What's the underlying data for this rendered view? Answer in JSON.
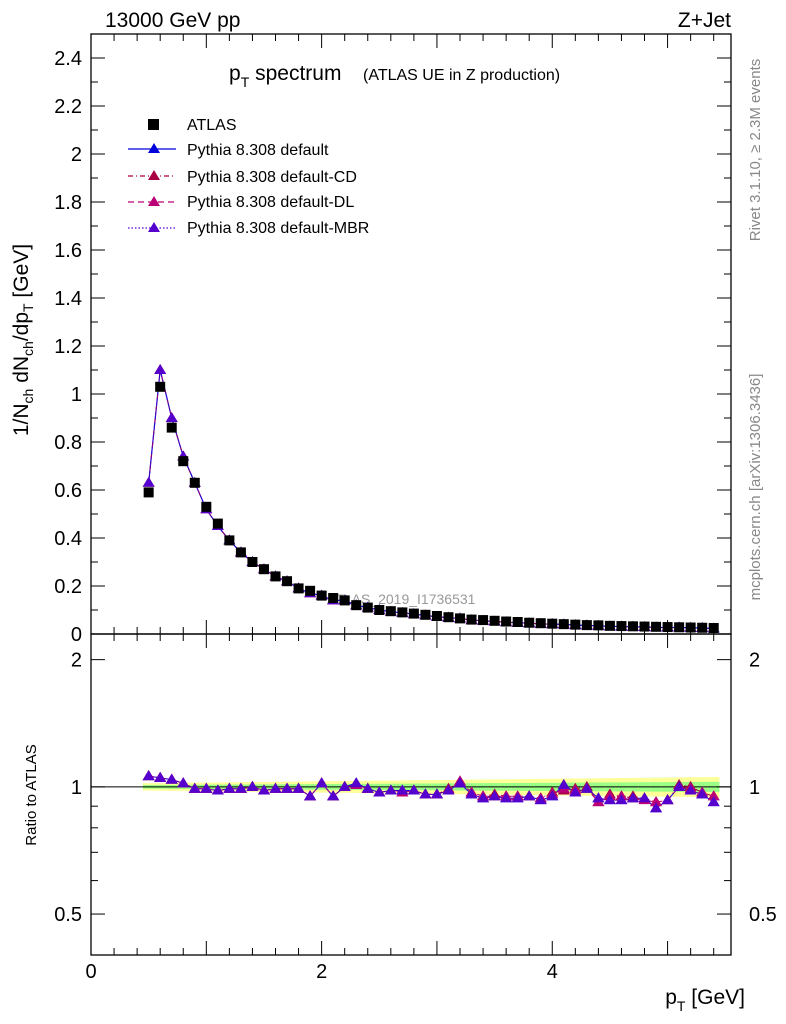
{
  "header": {
    "left": "13000 GeV pp",
    "right": "Z+Jet"
  },
  "side": {
    "rivet": "Rivet 3.1.10, ≥ 2.3M events",
    "mcplots": "mcplots.cern.ch [arXiv:1306.3436]"
  },
  "title": {
    "main": "p",
    "main_sub": "T",
    "main_rest": " spectrum",
    "note": "(ATLAS UE in Z production)"
  },
  "watermark": "ATLAS_2019_I1736531",
  "colors": {
    "atlas": "#000000",
    "default": "#0000dd",
    "cd": "#aa0044",
    "dl": "#bb0077",
    "mbr": "#5500cc",
    "band_yellow": "#ffff80",
    "band_green": "#80ff80"
  },
  "chart_data": [
    {
      "type": "scatter",
      "ylabel": "1/N_ch dN_ch/dp_T [GeV]",
      "ylim": [
        0,
        2.5
      ],
      "xlim": [
        0,
        5.55
      ],
      "yticks": [
        "0",
        "0.2",
        "0.4",
        "0.6",
        "0.8",
        "1",
        "1.2",
        "1.4",
        "1.6",
        "1.8",
        "2",
        "2.2",
        "2.4"
      ],
      "legend": [
        "ATLAS",
        "Pythia 8.308 default",
        "Pythia 8.308 default-CD",
        "Pythia 8.308 default-DL",
        "Pythia 8.308 default-MBR"
      ],
      "legend_placement": "top-left",
      "x": [
        0.5,
        0.6,
        0.7,
        0.8,
        0.9,
        1.0,
        1.1,
        1.2,
        1.3,
        1.4,
        1.5,
        1.6,
        1.7,
        1.8,
        1.9,
        2.0,
        2.1,
        2.2,
        2.3,
        2.4,
        2.5,
        2.6,
        2.7,
        2.8,
        2.9,
        3.0,
        3.1,
        3.2,
        3.3,
        3.4,
        3.5,
        3.6,
        3.7,
        3.8,
        3.9,
        4.0,
        4.1,
        4.2,
        4.3,
        4.4,
        4.5,
        4.6,
        4.7,
        4.8,
        4.9,
        5.0,
        5.1,
        5.2,
        5.3,
        5.4
      ],
      "atlas": [
        0.59,
        1.03,
        0.86,
        0.72,
        0.63,
        0.53,
        0.46,
        0.39,
        0.34,
        0.3,
        0.27,
        0.24,
        0.22,
        0.19,
        0.18,
        0.16,
        0.15,
        0.14,
        0.12,
        0.11,
        0.1,
        0.095,
        0.09,
        0.085,
        0.08,
        0.075,
        0.07,
        0.065,
        0.06,
        0.058,
        0.055,
        0.052,
        0.05,
        0.047,
        0.045,
        0.043,
        0.041,
        0.039,
        0.037,
        0.036,
        0.034,
        0.033,
        0.032,
        0.031,
        0.03,
        0.029,
        0.028,
        0.027,
        0.026,
        0.025
      ],
      "pythia": [
        0.63,
        1.1,
        0.9,
        0.74,
        0.63,
        0.52,
        0.45,
        0.39,
        0.34,
        0.3,
        0.27,
        0.24,
        0.22,
        0.19,
        0.17,
        0.16,
        0.14,
        0.14,
        0.12,
        0.11,
        0.1,
        0.093,
        0.088,
        0.083,
        0.077,
        0.072,
        0.068,
        0.065,
        0.058,
        0.055,
        0.052,
        0.049,
        0.047,
        0.045,
        0.042,
        0.041,
        0.04,
        0.037,
        0.036,
        0.034,
        0.032,
        0.031,
        0.03,
        0.029,
        0.027,
        0.027,
        0.027,
        0.026,
        0.025,
        0.023
      ]
    },
    {
      "type": "scatter",
      "ylabel": "Ratio to ATLAS",
      "xlabel": "p_T [GeV]",
      "xticks": [
        "0",
        "2",
        "4"
      ],
      "yticks": [
        "0.5",
        "1",
        "2"
      ],
      "ylim": [
        0.4,
        2.3
      ],
      "yscale": "log",
      "x": [
        0.5,
        0.6,
        0.7,
        0.8,
        0.9,
        1.0,
        1.1,
        1.2,
        1.3,
        1.4,
        1.5,
        1.6,
        1.7,
        1.8,
        1.9,
        2.0,
        2.1,
        2.2,
        2.3,
        2.4,
        2.5,
        2.6,
        2.7,
        2.8,
        2.9,
        3.0,
        3.1,
        3.2,
        3.3,
        3.4,
        3.5,
        3.6,
        3.7,
        3.8,
        3.9,
        4.0,
        4.1,
        4.2,
        4.3,
        4.4,
        4.5,
        4.6,
        4.7,
        4.8,
        4.9,
        5.0,
        5.1,
        5.2,
        5.3,
        5.4
      ],
      "series": [
        {
          "name": "Pythia 8.308 default",
          "values": [
            1.06,
            1.05,
            1.04,
            1.02,
            0.99,
            0.99,
            0.98,
            0.99,
            0.99,
            1.0,
            0.98,
            0.99,
            0.99,
            0.99,
            0.95,
            1.02,
            0.95,
            1.0,
            1.02,
            0.99,
            0.97,
            0.98,
            0.98,
            0.98,
            0.96,
            0.96,
            0.98,
            1.02,
            0.96,
            0.94,
            0.95,
            0.94,
            0.94,
            0.95,
            0.93,
            0.95,
            1.01,
            0.97,
            0.99,
            0.94,
            0.93,
            0.93,
            0.94,
            0.94,
            0.89,
            0.93,
            1.0,
            0.98,
            0.96,
            0.92
          ]
        },
        {
          "name": "Pythia 8.308 default-CD",
          "values": [
            1.06,
            1.05,
            1.04,
            1.02,
            0.99,
            0.99,
            0.98,
            0.99,
            0.99,
            1.0,
            0.98,
            0.99,
            0.99,
            0.99,
            0.95,
            1.02,
            0.95,
            1.0,
            1.01,
            0.99,
            0.97,
            0.98,
            0.97,
            0.98,
            0.96,
            0.96,
            0.99,
            1.03,
            0.97,
            0.95,
            0.96,
            0.95,
            0.95,
            0.95,
            0.94,
            0.97,
            0.98,
            0.99,
            1.0,
            0.92,
            0.96,
            0.95,
            0.95,
            0.94,
            0.92,
            0.93,
            1.01,
            1.0,
            0.97,
            0.95
          ]
        },
        {
          "name": "Pythia 8.308 default-DL",
          "values": [
            1.06,
            1.05,
            1.04,
            1.02,
            0.99,
            0.99,
            0.98,
            0.99,
            0.99,
            1.0,
            0.98,
            0.99,
            0.99,
            0.99,
            0.95,
            1.02,
            0.95,
            1.0,
            1.01,
            0.99,
            0.97,
            0.98,
            0.97,
            0.98,
            0.96,
            0.96,
            0.98,
            1.03,
            0.97,
            0.95,
            0.95,
            0.95,
            0.95,
            0.95,
            0.94,
            0.96,
            0.99,
            0.98,
            0.99,
            0.92,
            0.95,
            0.95,
            0.94,
            0.93,
            0.92,
            0.93,
            1.0,
            0.99,
            0.97,
            0.95
          ]
        },
        {
          "name": "Pythia 8.308 default-MBR",
          "values": [
            1.06,
            1.05,
            1.04,
            1.02,
            0.99,
            0.99,
            0.98,
            0.99,
            0.99,
            1.0,
            0.98,
            0.99,
            0.99,
            0.99,
            0.95,
            1.02,
            0.95,
            1.0,
            1.02,
            0.99,
            0.97,
            0.98,
            0.98,
            0.98,
            0.96,
            0.96,
            0.98,
            1.02,
            0.96,
            0.94,
            0.95,
            0.94,
            0.94,
            0.95,
            0.93,
            0.95,
            1.01,
            0.97,
            0.99,
            0.94,
            0.93,
            0.93,
            0.94,
            0.94,
            0.89,
            0.93,
            1.0,
            0.98,
            0.96,
            0.92
          ]
        }
      ]
    }
  ]
}
